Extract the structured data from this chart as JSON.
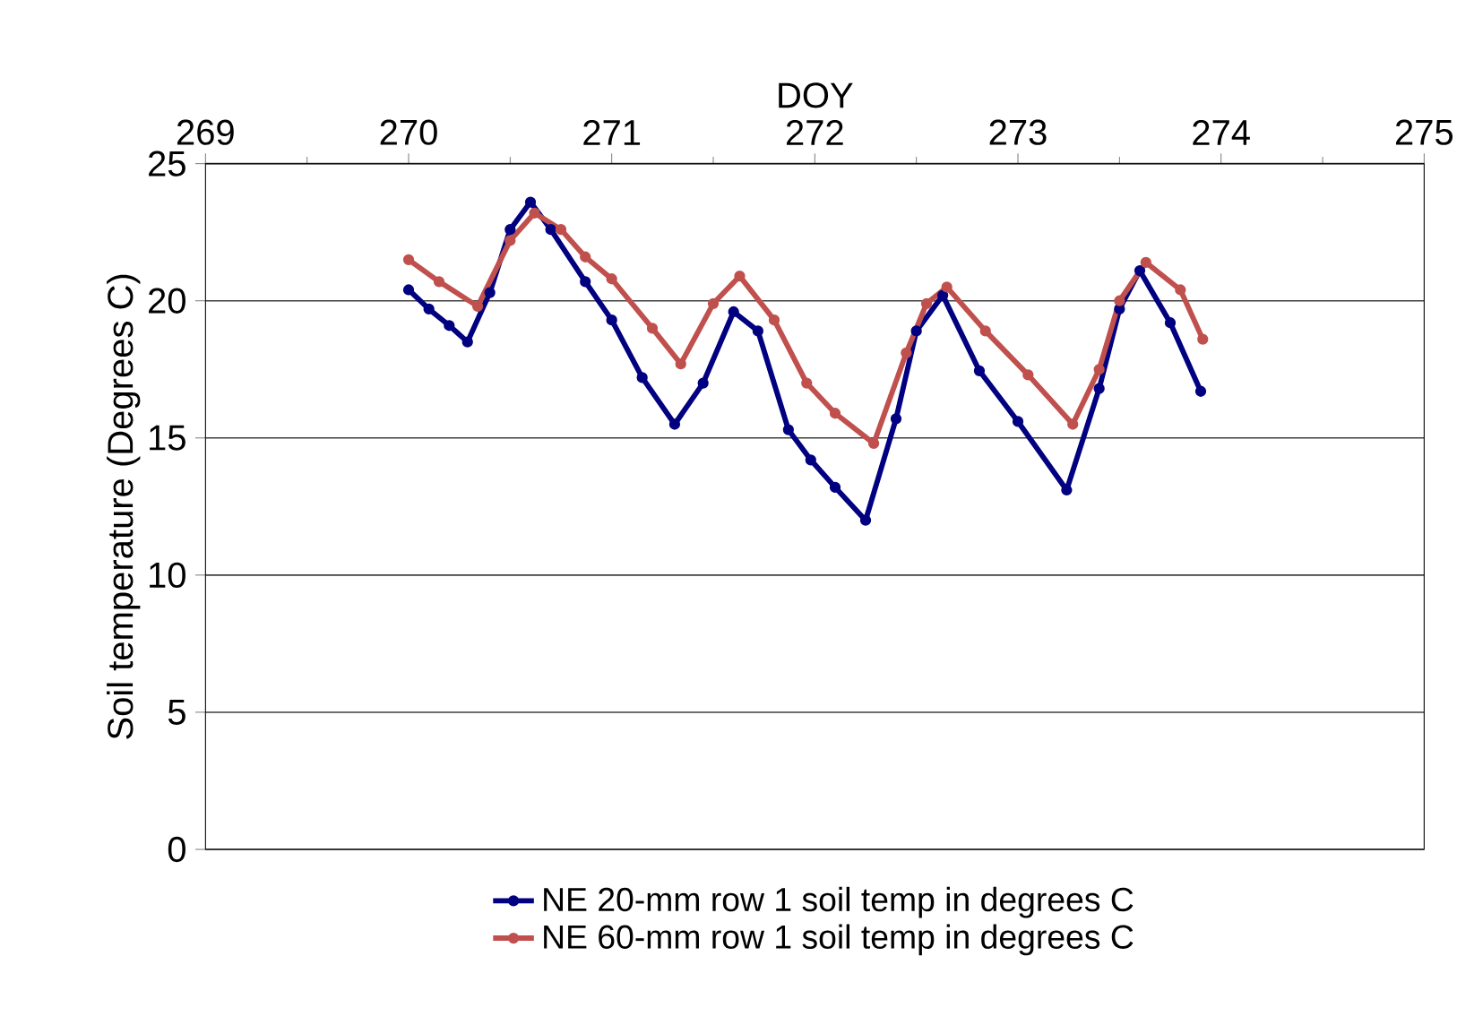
{
  "chart_data": {
    "type": "line",
    "xlabel": "DOY",
    "ylabel": "Soil temperature (Degrees C)",
    "xlim": [
      269,
      275
    ],
    "xticks": [
      269,
      270,
      271,
      272,
      273,
      274,
      275
    ],
    "ylim": [
      0,
      25
    ],
    "yticks": [
      0,
      5,
      10,
      15,
      20,
      25
    ],
    "grid": "y",
    "legend": "bottom",
    "marker": "circle",
    "line_style": "solid",
    "series": [
      {
        "name": "NE 20-mm row 1 soil temp in degrees C",
        "color": "#000080",
        "x": [
          270.0,
          270.1,
          270.2,
          270.29,
          270.4,
          270.5,
          270.6,
          270.7,
          270.87,
          271.0,
          271.15,
          271.31,
          271.45,
          271.6,
          271.72,
          271.87,
          271.98,
          272.1,
          272.25,
          272.4,
          272.5,
          272.63,
          272.81,
          273.0,
          273.24,
          273.4,
          273.5,
          273.6,
          273.75,
          273.9
        ],
        "values": [
          20.4,
          19.7,
          19.1,
          18.5,
          20.3,
          22.6,
          23.6,
          22.6,
          20.7,
          19.3,
          17.2,
          15.5,
          17.0,
          19.6,
          18.9,
          15.3,
          14.2,
          13.2,
          12.0,
          15.7,
          18.9,
          20.2,
          17.45,
          15.6,
          13.1,
          16.8,
          19.7,
          21.1,
          19.2,
          16.7
        ]
      },
      {
        "name": "NE 60-mm row 1 soil temp in degrees C",
        "color": "#c0504d",
        "x": [
          270.0,
          270.15,
          270.34,
          270.5,
          270.62,
          270.75,
          270.87,
          271.0,
          271.2,
          271.34,
          271.5,
          271.63,
          271.8,
          271.96,
          272.1,
          272.29,
          272.45,
          272.55,
          272.65,
          272.84,
          273.05,
          273.27,
          273.4,
          273.5,
          273.63,
          273.8,
          273.91
        ],
        "values": [
          21.5,
          20.7,
          19.8,
          22.2,
          23.2,
          22.6,
          21.6,
          20.8,
          19.0,
          17.7,
          19.9,
          20.9,
          19.3,
          17.0,
          15.9,
          14.8,
          18.1,
          19.9,
          20.5,
          18.9,
          17.3,
          15.5,
          17.5,
          20.0,
          21.4,
          20.4,
          18.6
        ]
      }
    ]
  }
}
